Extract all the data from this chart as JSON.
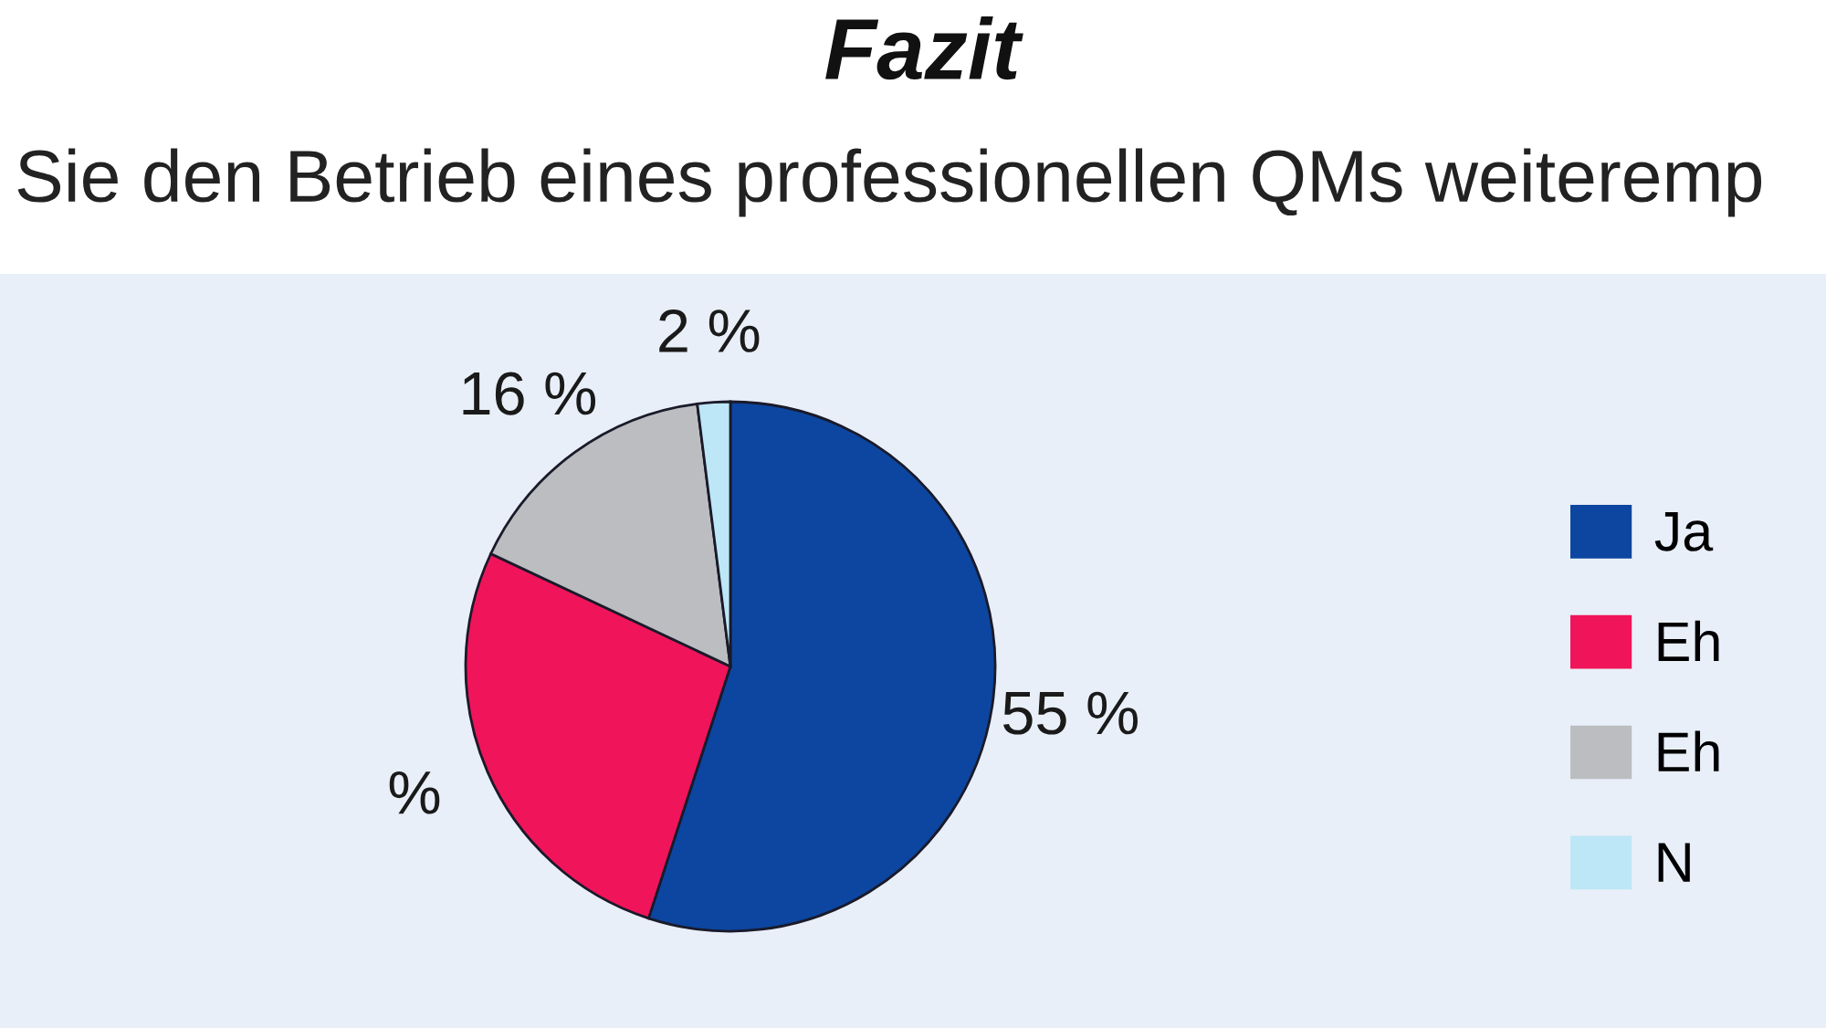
{
  "chart_data": {
    "type": "pie",
    "title": "Fazit",
    "subtitle": "Sie den Betrieb eines professionellen QMs weiteremp",
    "categories": [
      "Ja",
      "Eh",
      "Eh",
      "N"
    ],
    "values": [
      55,
      27,
      16,
      2
    ],
    "colors": [
      "#0c46a0",
      "#f0145a",
      "#bcbdc0",
      "#bde6f6"
    ],
    "value_labels": [
      "55 %",
      "%",
      "16 %",
      "2 %"
    ],
    "legend": "right"
  }
}
